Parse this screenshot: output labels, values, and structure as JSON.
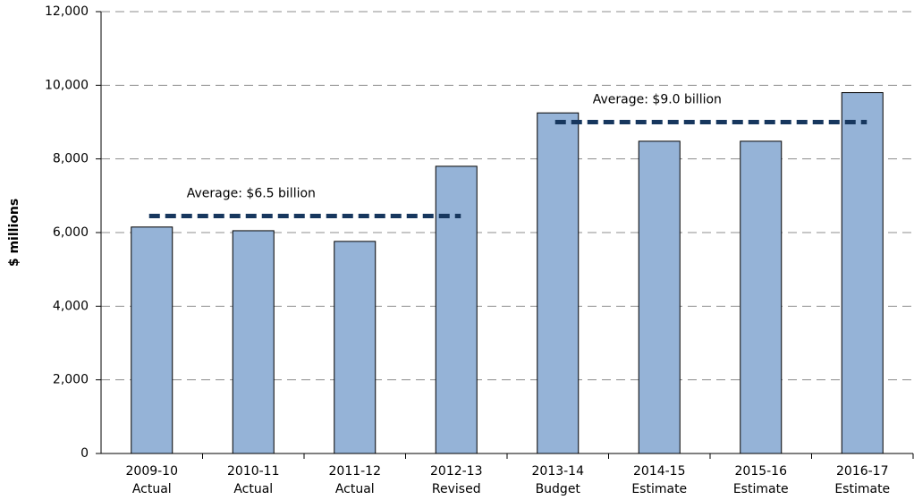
{
  "chart_data": {
    "type": "bar",
    "y_axis_label": "$ millions",
    "categories": [
      "2009-10",
      "2010-11",
      "2011-12",
      "2012-13",
      "2013-14",
      "2014-15",
      "2015-16",
      "2016-17"
    ],
    "category_notes": [
      "Actual",
      "Actual",
      "Actual",
      "Revised",
      "Budget",
      "Estimate",
      "Estimate",
      "Estimate"
    ],
    "values": [
      6150,
      6050,
      5760,
      7800,
      9250,
      8480,
      8480,
      9800
    ],
    "color": "#95b3d7",
    "ylim": [
      0,
      12000
    ],
    "yticks": [
      {
        "value": 0,
        "label": "0"
      },
      {
        "value": 2000,
        "label": "2,000"
      },
      {
        "value": 4000,
        "label": "4,000"
      },
      {
        "value": 6000,
        "label": "6,000"
      },
      {
        "value": 8000,
        "label": "8,000"
      },
      {
        "value": 10000,
        "label": "10,000"
      },
      {
        "value": 12000,
        "label": "12,000"
      }
    ],
    "grid": true,
    "averages": [
      {
        "label": "Average: $6.5 billion",
        "value": 6450,
        "from": 0,
        "to": 3
      },
      {
        "label": "Average: $9.0 billion",
        "value": 9000,
        "from": 4,
        "to": 7
      }
    ],
    "average_color": "#17375e"
  }
}
